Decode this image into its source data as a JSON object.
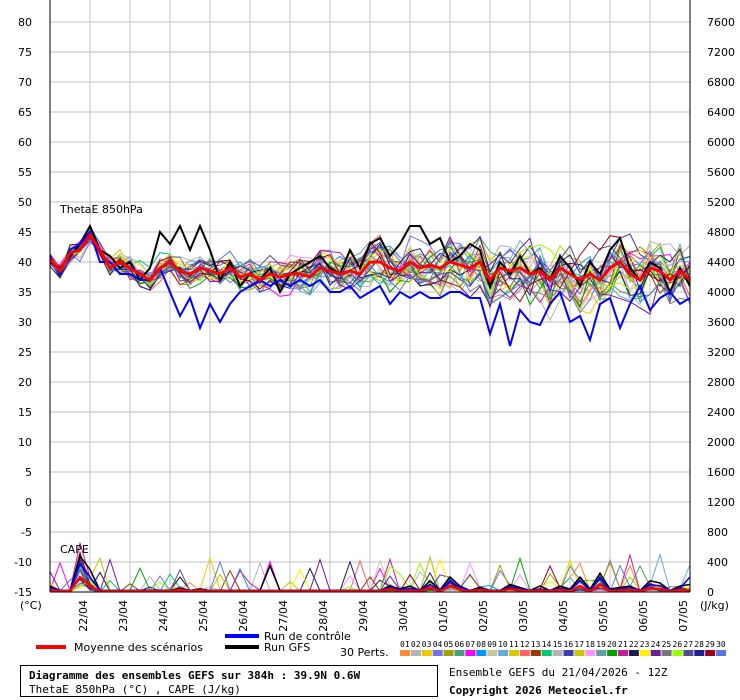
{
  "chart_data": {
    "type": "line",
    "left_axis": {
      "unit": "(°C)",
      "min": -15,
      "max": 80,
      "ticks": [
        80,
        75,
        70,
        65,
        60,
        55,
        50,
        45,
        40,
        35,
        30,
        25,
        20,
        15,
        10,
        5,
        0,
        -5,
        -10,
        -15
      ]
    },
    "right_axis": {
      "unit": "(J/kg)",
      "min": 0,
      "max": 7600,
      "ticks": [
        7600,
        7200,
        6800,
        6400,
        6000,
        5600,
        5200,
        4800,
        4400,
        4000,
        3600,
        3200,
        2800,
        2400,
        2000,
        1600,
        1200,
        800,
        400,
        0
      ]
    },
    "x_axis": {
      "days": [
        "22/04",
        "23/04",
        "24/04",
        "25/04",
        "26/04",
        "27/04",
        "28/04",
        "29/04",
        "30/04",
        "01/05",
        "02/05",
        "03/05",
        "04/05",
        "05/05",
        "06/05",
        "07/05"
      ],
      "steps": 65,
      "hours_per_step": 6
    },
    "panels": [
      {
        "label": "ThetaE 850hPa"
      },
      {
        "label": "CAPE"
      }
    ],
    "members": {
      "count": 30,
      "palette": [
        "#ff8c3c",
        "#b4b4b4",
        "#f0c800",
        "#786ee6",
        "#a0a000",
        "#46a078",
        "#ff00ff",
        "#0096ff",
        "#c8c8a0",
        "#64aadc",
        "#dcc800",
        "#ff6464",
        "#963c00",
        "#00c878",
        "#b4b4b4",
        "#3c3cb4",
        "#c8c800",
        "#ff96ff",
        "#5aa0a0",
        "#00a000",
        "#c81e96",
        "#1e1e50",
        "#fff000",
        "#6e1e96",
        "#787878",
        "#96ff00",
        "#50508c",
        "#1e1e96",
        "#96001e",
        "#5a78dc"
      ]
    },
    "legend": {
      "mean_label": "Moyenne des scénarios",
      "control_label": "Run de contrôle",
      "gfs_label": "Run GFS",
      "perts_label": "30 Perts.",
      "pert_ids": [
        "01",
        "02",
        "03",
        "04",
        "05",
        "06",
        "07",
        "08",
        "09",
        "10",
        "11",
        "12",
        "13",
        "14",
        "15",
        "16",
        "17",
        "18",
        "19",
        "20",
        "21",
        "22",
        "23",
        "24",
        "25",
        "26",
        "27",
        "28",
        "29",
        "30"
      ]
    },
    "colors": {
      "mean": "#ff0000",
      "control": "#0000ff",
      "gfs": "#000000",
      "grid": "#c0c0c0"
    },
    "mean_thetae": [
      40.5,
      38.5,
      41.5,
      42,
      44.5,
      42,
      39,
      40,
      39,
      38,
      37,
      39,
      40,
      38.5,
      38,
      39,
      38.5,
      38,
      39,
      37.5,
      38,
      37,
      38,
      37.5,
      38,
      38,
      37.5,
      39,
      38.5,
      38,
      38.5,
      38,
      40,
      40,
      39,
      38.5,
      40,
      39,
      39.5,
      39,
      40,
      39.5,
      39,
      40,
      37,
      39,
      38.5,
      39,
      38,
      38.5,
      37,
      39,
      38,
      37,
      38,
      37,
      39,
      40,
      38,
      37,
      39,
      38.5,
      37,
      38.5,
      37
    ],
    "control_thetae": [
      41,
      38,
      42,
      43,
      45,
      40,
      40,
      38,
      38,
      37,
      37,
      39,
      35,
      31,
      34,
      29,
      33,
      30,
      33,
      35,
      36,
      37,
      36,
      37,
      36,
      37,
      36,
      37,
      35,
      35,
      36,
      34,
      35,
      36,
      33,
      35,
      34,
      35,
      34,
      34,
      35,
      35,
      34,
      34,
      28,
      33,
      26,
      32,
      30,
      29.5,
      33,
      35,
      30,
      31,
      27,
      33,
      34,
      29,
      33,
      36,
      32,
      34,
      35,
      33,
      34
    ],
    "gfs_thetae": [
      40,
      39,
      41,
      43,
      46,
      42,
      41,
      39,
      40,
      37,
      39,
      45,
      43,
      46,
      42,
      46,
      42,
      37,
      40,
      36,
      38,
      37,
      39,
      35,
      38,
      39,
      40,
      41,
      39,
      38,
      42,
      39,
      43,
      44,
      41,
      43,
      46,
      46,
      43,
      44,
      40,
      41,
      43,
      42,
      36,
      40,
      38,
      41,
      38,
      39,
      37,
      41,
      39,
      36,
      40,
      38,
      42,
      44,
      39,
      37,
      40,
      39,
      35,
      39,
      36
    ],
    "mean_cape": [
      30,
      10,
      10,
      200,
      80,
      10,
      10,
      10,
      10,
      10,
      10,
      10,
      10,
      30,
      10,
      20,
      10,
      10,
      10,
      10,
      10,
      10,
      10,
      10,
      10,
      10,
      10,
      10,
      10,
      10,
      10,
      10,
      10,
      10,
      40,
      10,
      20,
      10,
      60,
      10,
      80,
      30,
      10,
      30,
      10,
      10,
      40,
      20,
      10,
      20,
      10,
      30,
      10,
      80,
      10,
      100,
      10,
      20,
      30,
      10,
      50,
      40,
      10,
      30,
      20
    ],
    "control_cape": [
      60,
      20,
      20,
      380,
      200,
      20,
      20,
      20,
      20,
      20,
      20,
      20,
      20,
      30,
      20,
      30,
      20,
      20,
      20,
      20,
      20,
      20,
      20,
      20,
      20,
      20,
      20,
      20,
      20,
      20,
      20,
      20,
      20,
      20,
      60,
      30,
      50,
      20,
      100,
      20,
      150,
      60,
      20,
      40,
      20,
      20,
      60,
      40,
      20,
      40,
      20,
      50,
      20,
      150,
      20,
      200,
      20,
      40,
      60,
      20,
      100,
      80,
      20,
      50,
      200
    ],
    "gfs_cape": [
      80,
      20,
      20,
      480,
      300,
      20,
      20,
      20,
      20,
      20,
      20,
      20,
      20,
      50,
      20,
      40,
      20,
      20,
      20,
      20,
      20,
      20,
      350,
      20,
      20,
      20,
      20,
      20,
      20,
      20,
      20,
      20,
      20,
      20,
      80,
      40,
      80,
      20,
      150,
      30,
      200,
      80,
      20,
      60,
      20,
      20,
      100,
      60,
      20,
      80,
      20,
      80,
      40,
      200,
      40,
      250,
      40,
      60,
      80,
      20,
      150,
      120,
      20,
      80,
      100
    ]
  },
  "footer": {
    "title_line1": "Diagramme des ensembles GEFS sur 384h : 39.9N 0.6W",
    "title_line2": "ThetaE 850hPa (°C) , CAPE (J/kg)",
    "ensemble_run": "Ensemble GEFS du 21/04/2026 - 12Z",
    "copyright": "Copyright 2026 Meteociel.fr"
  }
}
